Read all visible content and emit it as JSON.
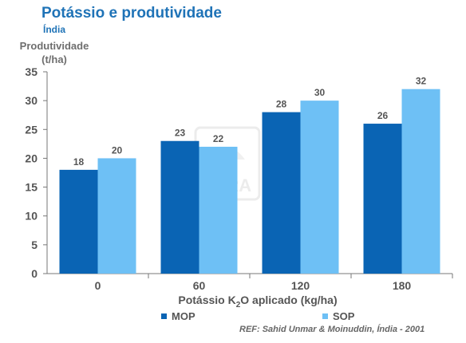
{
  "header": {
    "title": "Potássio e produtividade",
    "subtitle": "Índia"
  },
  "colors": {
    "title": "#1f73b7",
    "mop": "#0a64b4",
    "sop": "#6ec0f5",
    "axis_text": "#555555"
  },
  "watermark": {
    "text": "YARA"
  },
  "legend": {
    "mop": "MOP",
    "sop": "SOP"
  },
  "reference": "REF: Sahid Unmar & Moinuddin, Índia - 2001",
  "chart_data": {
    "type": "bar",
    "title": "Potássio e produtividade",
    "subtitle": "Índia",
    "ylabel": "Produtividade (t/ha)",
    "ylabel_lines": [
      "Produtividade",
      "(t/ha)"
    ],
    "xlabel_parts": [
      "Potássio K",
      "2",
      "O aplicado (kg/ha)"
    ],
    "categories": [
      "0",
      "60",
      "120",
      "180"
    ],
    "series": [
      {
        "name": "MOP",
        "values": [
          18,
          23,
          28,
          26
        ]
      },
      {
        "name": "SOP",
        "values": [
          20,
          22,
          30,
          32
        ]
      }
    ],
    "ylim": [
      0,
      35
    ],
    "yticks": [
      0,
      5,
      10,
      15,
      20,
      25,
      30,
      35
    ],
    "grid": false,
    "legend_position": "bottom-left"
  }
}
